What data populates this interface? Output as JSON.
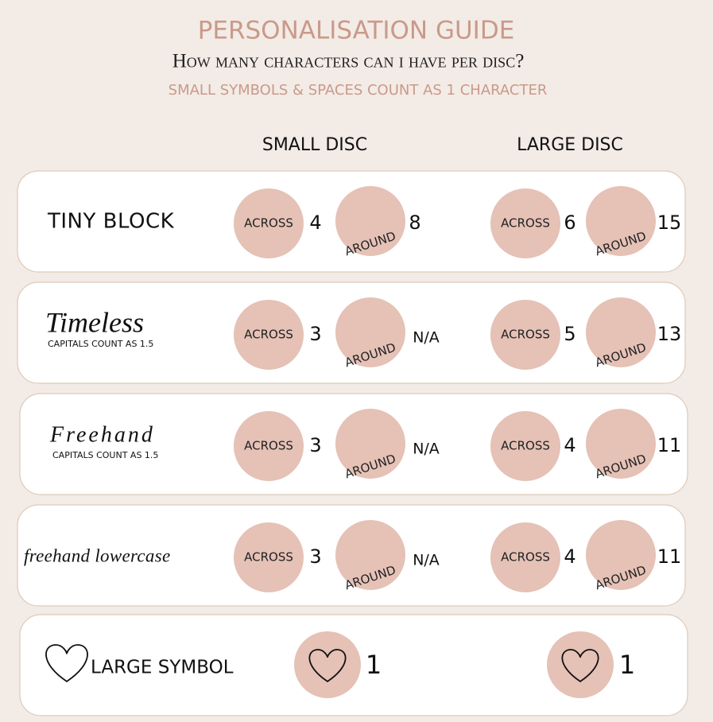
{
  "header": {
    "title": "PERSONALISATION GUIDE",
    "subtitle": "How many characters can i have per disc?",
    "note": "SMALL SYMBOLS & SPACES COUNT AS 1 CHARACTER"
  },
  "columns": [
    "SMALL DISC",
    "LARGE DISC"
  ],
  "circle_labels": {
    "across": "ACROSS",
    "around": "AROUND"
  },
  "rows": [
    {
      "label": "TINY BLOCK",
      "small": {
        "across": 4,
        "around": 8
      },
      "large": {
        "across": 6,
        "around": 15
      }
    },
    {
      "label": "Timeless",
      "note": "CAPITALS COUNT AS 1.5",
      "small": {
        "across": 3,
        "around": "N/A"
      },
      "large": {
        "across": 5,
        "around": 13
      }
    },
    {
      "label": "Freehand",
      "note": "CAPITALS COUNT AS 1.5",
      "small": {
        "across": 3,
        "around": "N/A"
      },
      "large": {
        "across": 4,
        "around": 11
      }
    },
    {
      "label": "freehand lowercase",
      "small": {
        "across": 3,
        "around": "N/A"
      },
      "large": {
        "across": 4,
        "around": 11
      }
    }
  ],
  "symbol_row": {
    "label": "LARGE SYMBOL",
    "small": 1,
    "large": 1
  }
}
